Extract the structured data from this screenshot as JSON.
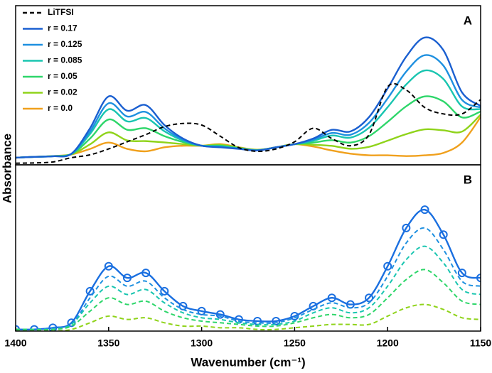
{
  "chart_data": [
    {
      "type": "line",
      "panel_label": "A",
      "y_label": "Absorbance",
      "legend": "upper left",
      "x": [
        1400,
        1390,
        1380,
        1370,
        1360,
        1350,
        1340,
        1330,
        1320,
        1310,
        1300,
        1290,
        1280,
        1270,
        1260,
        1250,
        1240,
        1230,
        1220,
        1210,
        1200,
        1190,
        1180,
        1170,
        1160,
        1150
      ],
      "xlim": [
        1400,
        1150
      ],
      "ylim": [
        0,
        1
      ],
      "series": [
        {
          "name": "LiTFSI",
          "color": "#000000",
          "style": "dashed",
          "values": [
            0.01,
            0.012,
            0.018,
            0.045,
            0.063,
            0.1,
            0.145,
            0.19,
            0.24,
            0.26,
            0.25,
            0.18,
            0.108,
            0.085,
            0.1,
            0.145,
            0.23,
            0.165,
            0.12,
            0.19,
            0.49,
            0.47,
            0.36,
            0.32,
            0.32,
            0.41
          ]
        },
        {
          "name": "r = 0.17",
          "color": "#1a5fd0",
          "style": "solid",
          "values": [
            0.045,
            0.05,
            0.054,
            0.07,
            0.23,
            0.43,
            0.34,
            0.375,
            0.25,
            0.165,
            0.12,
            0.11,
            0.1,
            0.09,
            0.11,
            0.13,
            0.165,
            0.22,
            0.21,
            0.3,
            0.48,
            0.68,
            0.8,
            0.72,
            0.455,
            0.37
          ]
        },
        {
          "name": "r = 0.125",
          "color": "#1e90e0",
          "style": "solid",
          "values": [
            0.045,
            0.05,
            0.054,
            0.069,
            0.21,
            0.387,
            0.304,
            0.332,
            0.229,
            0.158,
            0.12,
            0.113,
            0.102,
            0.091,
            0.11,
            0.13,
            0.158,
            0.2,
            0.189,
            0.264,
            0.417,
            0.586,
            0.689,
            0.623,
            0.408,
            0.36
          ]
        },
        {
          "name": "r = 0.085",
          "color": "#19c5b0",
          "style": "solid",
          "values": [
            0.045,
            0.05,
            0.054,
            0.069,
            0.194,
            0.349,
            0.273,
            0.294,
            0.211,
            0.152,
            0.12,
            0.116,
            0.103,
            0.091,
            0.11,
            0.13,
            0.151,
            0.184,
            0.171,
            0.233,
            0.362,
            0.505,
            0.593,
            0.539,
            0.367,
            0.35
          ]
        },
        {
          "name": "r = 0.05",
          "color": "#2ed66a",
          "style": "solid",
          "values": [
            0.045,
            0.05,
            0.055,
            0.068,
            0.165,
            0.285,
            0.22,
            0.23,
            0.18,
            0.143,
            0.12,
            0.12,
            0.105,
            0.093,
            0.11,
            0.13,
            0.14,
            0.155,
            0.14,
            0.18,
            0.27,
            0.368,
            0.43,
            0.398,
            0.298,
            0.335
          ]
        },
        {
          "name": "r = 0.02",
          "color": "#8fd31a",
          "style": "solid",
          "values": [
            0.045,
            0.05,
            0.055,
            0.066,
            0.129,
            0.204,
            0.153,
            0.149,
            0.141,
            0.13,
            0.12,
            0.126,
            0.108,
            0.094,
            0.11,
            0.13,
            0.126,
            0.119,
            0.101,
            0.113,
            0.152,
            0.193,
            0.223,
            0.217,
            0.209,
            0.315
          ]
        },
        {
          "name": "r = 0.0",
          "color": "#f0a01c",
          "style": "solid",
          "values": [
            0.045,
            0.05,
            0.055,
            0.065,
            0.1,
            0.14,
            0.1,
            0.085,
            0.11,
            0.12,
            0.12,
            0.13,
            0.11,
            0.095,
            0.11,
            0.13,
            0.115,
            0.09,
            0.07,
            0.06,
            0.06,
            0.055,
            0.06,
            0.075,
            0.14,
            0.3
          ]
        }
      ]
    },
    {
      "type": "line",
      "panel_label": "B",
      "x_label": "Wavenumber (cm⁻¹)",
      "x": [
        1400,
        1390,
        1380,
        1370,
        1360,
        1350,
        1340,
        1330,
        1320,
        1310,
        1300,
        1290,
        1280,
        1270,
        1260,
        1250,
        1240,
        1230,
        1220,
        1210,
        1200,
        1190,
        1180,
        1170,
        1160,
        1150
      ],
      "xlim": [
        1400,
        1150
      ],
      "xticks": [
        1400,
        1350,
        1300,
        1250,
        1200,
        1150
      ],
      "ylim": [
        0,
        1
      ],
      "series": [
        {
          "color": "#8fd31a",
          "style": "dashed",
          "values": [
            0,
            0,
            0,
            0.01,
            0.05,
            0.09,
            0.07,
            0.08,
            0.05,
            0.03,
            0.03,
            0.02,
            0.02,
            0.01,
            0.01,
            0.02,
            0.03,
            0.04,
            0.04,
            0.04,
            0.09,
            0.14,
            0.16,
            0.13,
            0.08,
            0.07
          ]
        },
        {
          "color": "#2ed66a",
          "style": "dashed",
          "values": [
            0.01,
            0.01,
            0.01,
            0.03,
            0.12,
            0.2,
            0.16,
            0.18,
            0.12,
            0.08,
            0.06,
            0.05,
            0.04,
            0.03,
            0.03,
            0.05,
            0.08,
            0.1,
            0.08,
            0.1,
            0.2,
            0.31,
            0.37,
            0.29,
            0.18,
            0.16
          ]
        },
        {
          "color": "#19c5b0",
          "style": "dashed",
          "values": [
            0.01,
            0.01,
            0.01,
            0.04,
            0.17,
            0.27,
            0.22,
            0.25,
            0.17,
            0.11,
            0.08,
            0.07,
            0.05,
            0.04,
            0.04,
            0.06,
            0.11,
            0.14,
            0.11,
            0.14,
            0.27,
            0.43,
            0.51,
            0.41,
            0.25,
            0.22
          ]
        },
        {
          "color": "#1e90e0",
          "style": "dashed",
          "values": [
            0.01,
            0.01,
            0.02,
            0.04,
            0.2,
            0.33,
            0.27,
            0.3,
            0.2,
            0.13,
            0.1,
            0.09,
            0.06,
            0.05,
            0.05,
            0.08,
            0.13,
            0.17,
            0.14,
            0.17,
            0.33,
            0.53,
            0.62,
            0.49,
            0.3,
            0.27
          ]
        },
        {
          "color": "#1a6fe0",
          "style": "solid",
          "values": [
            0.01,
            0.01,
            0.02,
            0.05,
            0.24,
            0.39,
            0.32,
            0.35,
            0.24,
            0.15,
            0.12,
            0.1,
            0.07,
            0.06,
            0.06,
            0.09,
            0.15,
            0.2,
            0.16,
            0.2,
            0.39,
            0.62,
            0.73,
            0.58,
            0.35,
            0.32
          ]
        },
        {
          "color": "#1a6fe0",
          "style": "none",
          "marker": "circle",
          "values": [
            0.01,
            0.01,
            0.02,
            0.05,
            0.24,
            0.39,
            0.32,
            0.35,
            0.24,
            0.15,
            0.12,
            0.1,
            0.07,
            0.06,
            0.06,
            0.09,
            0.15,
            0.2,
            0.16,
            0.2,
            0.39,
            0.62,
            0.73,
            0.58,
            0.35,
            0.32
          ]
        }
      ]
    }
  ]
}
